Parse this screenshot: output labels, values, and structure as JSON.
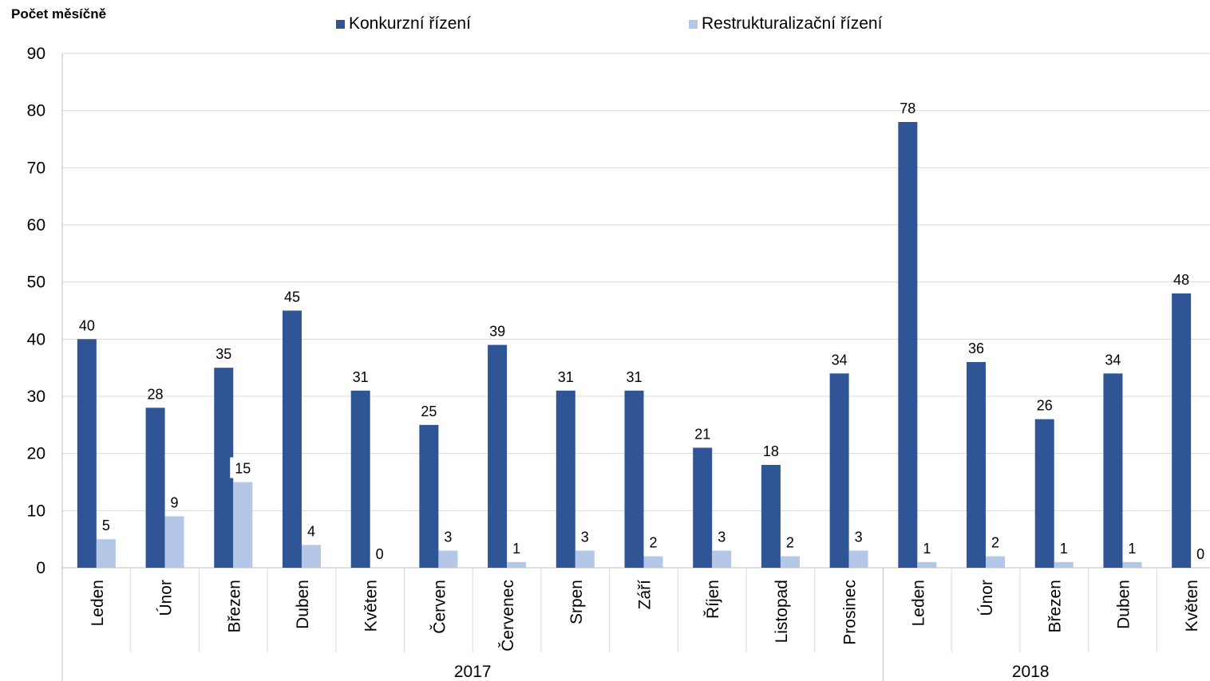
{
  "chart_data": {
    "type": "bar",
    "title": "",
    "ylabel": "Počet měsíčně",
    "ylim": [
      0,
      90
    ],
    "yticks": [
      0,
      10,
      20,
      30,
      40,
      50,
      60,
      70,
      80,
      90
    ],
    "grid": true,
    "legend_position": "top",
    "categories": [
      "Leden",
      "Únor",
      "Březen",
      "Duben",
      "Květen",
      "Červen",
      "Červenec",
      "Srpen",
      "Září",
      "Říjen",
      "Listopad",
      "Prosinec",
      "Leden",
      "Únor",
      "Březen",
      "Duben",
      "Květen"
    ],
    "groups": [
      {
        "label": "2017",
        "count": 12
      },
      {
        "label": "2018",
        "count": 5
      }
    ],
    "series": [
      {
        "name": "Konkurzní řízení",
        "color": "#2f5597",
        "values": [
          40,
          28,
          35,
          45,
          31,
          25,
          39,
          31,
          31,
          21,
          18,
          34,
          78,
          36,
          26,
          34,
          48
        ]
      },
      {
        "name": "Restrukturalizační řízení",
        "color": "#b4c7e7",
        "values": [
          5,
          9,
          15,
          4,
          0,
          3,
          1,
          3,
          2,
          3,
          2,
          3,
          1,
          2,
          1,
          1,
          0
        ]
      }
    ]
  }
}
